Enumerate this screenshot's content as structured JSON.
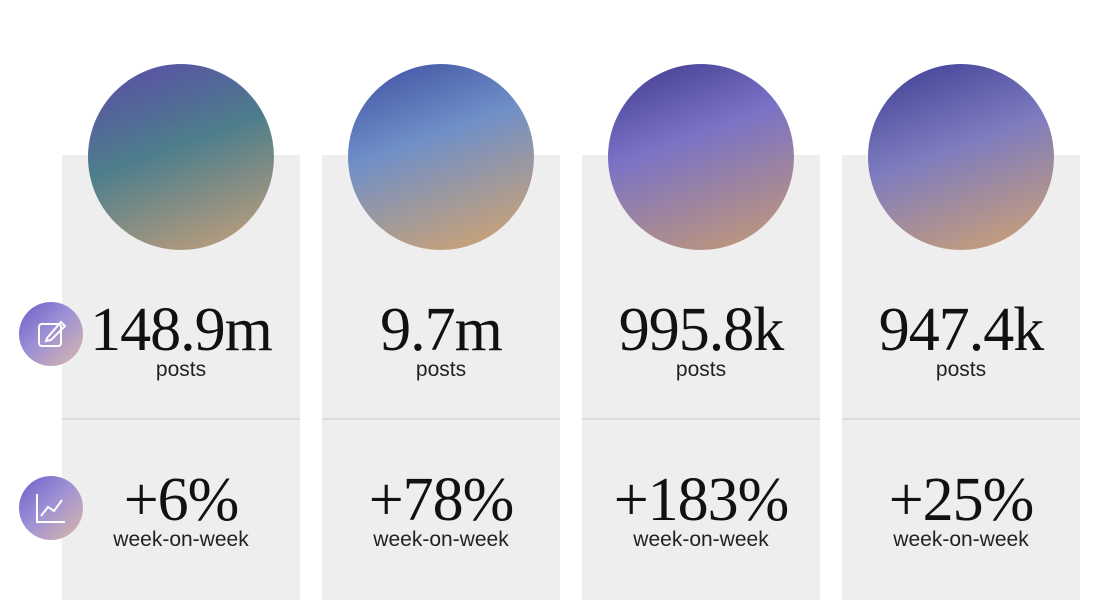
{
  "cards": [
    {
      "posts": "148.9m",
      "posts_label": "posts",
      "growth": "+6%",
      "growth_label": "week-on-week"
    },
    {
      "posts": "9.7m",
      "posts_label": "posts",
      "growth": "+78%",
      "growth_label": "week-on-week"
    },
    {
      "posts": "995.8k",
      "posts_label": "posts",
      "growth": "+183%",
      "growth_label": "week-on-week"
    },
    {
      "posts": "947.4k",
      "posts_label": "posts",
      "growth": "+25%",
      "growth_label": "week-on-week"
    }
  ]
}
